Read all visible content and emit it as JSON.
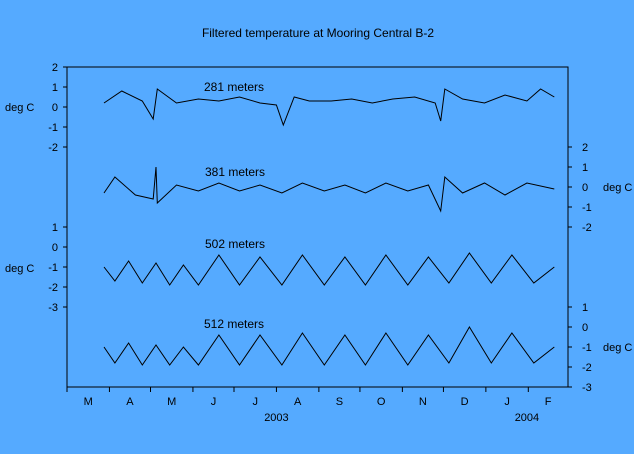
{
  "chart_data": {
    "type": "line",
    "title": "Filtered temperature at Mooring Central B-2",
    "month_ticks": [
      "M",
      "A",
      "M",
      "J",
      "J",
      "A",
      "S",
      "O",
      "N",
      "D",
      "J",
      "F"
    ],
    "year_labels": [
      "2003",
      "2004"
    ],
    "grid": false,
    "panels": [
      {
        "name": "281 meters",
        "unit": "deg C",
        "axis_side": "left",
        "ylim": [
          -2,
          2
        ],
        "yticks": [
          2,
          1,
          0,
          -1,
          -2
        ],
        "series": [
          {
            "name": "281 meters",
            "x": [
              "2003-03-28",
              "2003-04-10",
              "2003-04-25",
              "2003-05-03",
              "2003-05-06",
              "2003-05-20",
              "2003-06-05",
              "2003-06-20",
              "2003-07-05",
              "2003-07-20",
              "2003-08-01",
              "2003-08-06",
              "2003-08-14",
              "2003-08-25",
              "2003-09-10",
              "2003-09-25",
              "2003-10-10",
              "2003-10-25",
              "2003-11-10",
              "2003-11-25",
              "2003-11-29",
              "2003-12-02",
              "2003-12-15",
              "2003-12-31",
              "2004-01-15",
              "2004-01-31",
              "2004-02-10",
              "2004-02-20"
            ],
            "y": [
              0.2,
              0.8,
              0.3,
              -0.6,
              0.9,
              0.2,
              0.4,
              0.3,
              0.5,
              0.2,
              0.1,
              -0.9,
              0.5,
              0.3,
              0.3,
              0.4,
              0.2,
              0.4,
              0.5,
              0.2,
              -0.7,
              0.9,
              0.4,
              0.2,
              0.6,
              0.3,
              0.9,
              0.5
            ]
          }
        ]
      },
      {
        "name": "381 meters",
        "unit": "deg C",
        "axis_side": "right",
        "ylim": [
          -2,
          2
        ],
        "yticks": [
          2,
          1,
          0,
          -1,
          -2
        ],
        "series": [
          {
            "name": "381 meters",
            "x": [
              "2003-03-28",
              "2003-04-05",
              "2003-04-20",
              "2003-05-03",
              "2003-05-05",
              "2003-05-06",
              "2003-05-20",
              "2003-06-05",
              "2003-06-20",
              "2003-07-05",
              "2003-07-20",
              "2003-08-05",
              "2003-08-20",
              "2003-09-05",
              "2003-09-20",
              "2003-10-05",
              "2003-10-20",
              "2003-11-05",
              "2003-11-20",
              "2003-11-29",
              "2003-12-02",
              "2003-12-15",
              "2003-12-31",
              "2004-01-15",
              "2004-01-31",
              "2004-02-20"
            ],
            "y": [
              -0.3,
              0.5,
              -0.4,
              -0.6,
              1.0,
              -0.8,
              0.1,
              -0.2,
              0.2,
              -0.2,
              0.1,
              -0.3,
              0.2,
              -0.2,
              0.1,
              -0.3,
              0.2,
              -0.2,
              0.1,
              -1.2,
              0.5,
              -0.3,
              0.2,
              -0.4,
              0.2,
              -0.1
            ]
          }
        ]
      },
      {
        "name": "502 meters",
        "unit": "deg C",
        "axis_side": "left",
        "ylim": [
          -3,
          1
        ],
        "yticks": [
          1,
          0,
          -1,
          -2,
          -3
        ],
        "series": [
          {
            "name": "502 meters",
            "x": [
              "2003-03-28",
              "2003-04-05",
              "2003-04-15",
              "2003-04-25",
              "2003-05-05",
              "2003-05-15",
              "2003-05-25",
              "2003-06-05",
              "2003-06-20",
              "2003-07-05",
              "2003-07-20",
              "2003-08-05",
              "2003-08-20",
              "2003-09-05",
              "2003-09-20",
              "2003-10-05",
              "2003-10-20",
              "2003-11-05",
              "2003-11-20",
              "2003-12-05",
              "2003-12-20",
              "2004-01-05",
              "2004-01-20",
              "2004-02-05",
              "2004-02-20"
            ],
            "y": [
              -1.0,
              -1.7,
              -0.7,
              -1.8,
              -0.8,
              -1.9,
              -0.9,
              -1.9,
              -0.4,
              -1.9,
              -0.5,
              -1.9,
              -0.4,
              -1.9,
              -0.5,
              -1.9,
              -0.4,
              -1.9,
              -0.5,
              -1.8,
              -0.3,
              -1.8,
              -0.4,
              -1.8,
              -1.0
            ]
          }
        ]
      },
      {
        "name": "512 meters",
        "unit": "deg C",
        "axis_side": "right",
        "ylim": [
          -3,
          1
        ],
        "yticks": [
          1,
          0,
          -1,
          -2,
          -3
        ],
        "series": [
          {
            "name": "512 meters",
            "x": [
              "2003-03-28",
              "2003-04-05",
              "2003-04-15",
              "2003-04-25",
              "2003-05-05",
              "2003-05-15",
              "2003-05-25",
              "2003-06-05",
              "2003-06-20",
              "2003-07-05",
              "2003-07-20",
              "2003-08-05",
              "2003-08-20",
              "2003-09-05",
              "2003-09-20",
              "2003-10-05",
              "2003-10-20",
              "2003-11-05",
              "2003-11-20",
              "2003-12-05",
              "2003-12-20",
              "2004-01-05",
              "2004-01-20",
              "2004-02-05",
              "2004-02-20"
            ],
            "y": [
              -1.0,
              -1.8,
              -0.8,
              -1.9,
              -0.9,
              -1.9,
              -1.0,
              -1.9,
              -0.4,
              -1.9,
              -0.4,
              -1.9,
              -0.3,
              -1.9,
              -0.4,
              -1.9,
              -0.3,
              -1.9,
              -0.4,
              -1.8,
              0.0,
              -1.8,
              -0.3,
              -1.8,
              -1.0
            ]
          }
        ]
      }
    ]
  }
}
